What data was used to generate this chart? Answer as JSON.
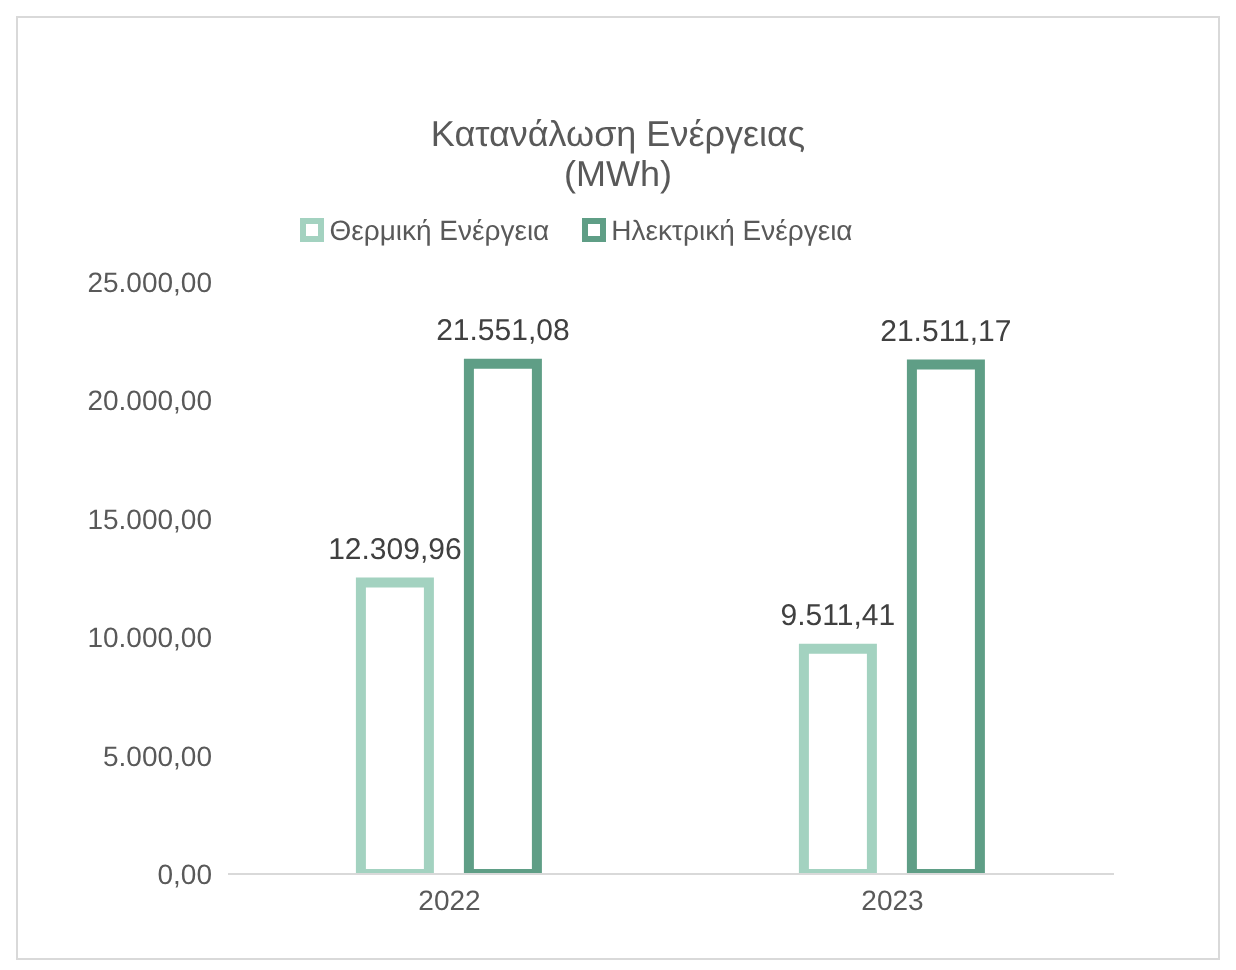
{
  "chart_data": {
    "type": "bar",
    "title": "Κατανάλωση Ενέργειας",
    "subtitle": "(MWh)",
    "categories": [
      "2022",
      "2023"
    ],
    "series": [
      {
        "name": "Θερμική Ενέργεια",
        "color": "#a3d2c0",
        "values": [
          12309.96,
          9511.41
        ],
        "value_labels": [
          "12.309,96",
          "9.511,41"
        ]
      },
      {
        "name": "Ηλεκτρική Ενέργεια",
        "color": "#5f9e86",
        "values": [
          21551.08,
          21511.17
        ],
        "value_labels": [
          "21.551,08",
          "21.511,17"
        ]
      }
    ],
    "ylim": [
      0,
      25000
    ],
    "yticks": [
      {
        "value": 0,
        "label": "0,00"
      },
      {
        "value": 5000,
        "label": "5.000,00"
      },
      {
        "value": 10000,
        "label": "10.000,00"
      },
      {
        "value": 15000,
        "label": "15.000,00"
      },
      {
        "value": 20000,
        "label": "20.000,00"
      },
      {
        "value": 25000,
        "label": "25.000,00"
      }
    ],
    "grid": false,
    "legend": "top"
  }
}
